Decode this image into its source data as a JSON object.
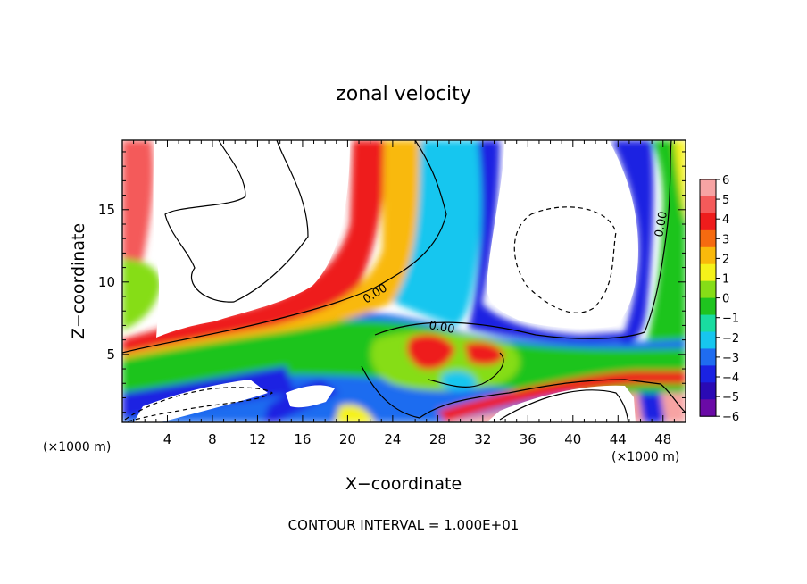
{
  "chart_data": {
    "type": "heatmap",
    "title": "zonal velocity",
    "xlabel": "X−coordinate",
    "ylabel": "Z−coordinate",
    "x_unit": "(×1000 m)",
    "z_unit": "(×1000 m)",
    "xlim": [
      0,
      50
    ],
    "ylim": [
      0.3,
      19.8
    ],
    "x_ticks": [
      4,
      8,
      12,
      16,
      20,
      24,
      28,
      32,
      36,
      40,
      44,
      48
    ],
    "y_ticks": [
      5,
      10,
      15
    ],
    "colorbar": {
      "levels": [
        6,
        5,
        4,
        3,
        2,
        1,
        0,
        -1,
        -2,
        -3,
        -4,
        -5,
        -6
      ],
      "labels": [
        "6",
        "5",
        "4",
        "3",
        "2",
        "1",
        "0",
        "−1",
        "−2",
        "−3",
        "−4",
        "−5",
        "−6"
      ],
      "colors": [
        "#f7a3a3",
        "#f45a5a",
        "#ee1c1c",
        "#f56a10",
        "#f9b90b",
        "#f5f21a",
        "#86dd17",
        "#1fc41f",
        "#19dca0",
        "#17c6ef",
        "#1f6cf0",
        "#1a22e2",
        "#2a0ab4",
        "#6a0aa6"
      ]
    },
    "contour_labels": [
      "0.00",
      "0.00",
      "0.00"
    ],
    "footer": "CONTOUR INTERVAL = 1.000E+01"
  }
}
